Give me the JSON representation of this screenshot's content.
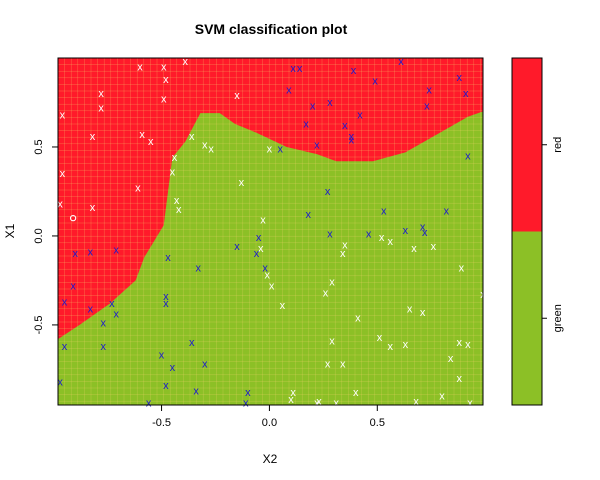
{
  "chart_data": {
    "type": "scatter",
    "title": "SVM classification plot",
    "xlabel": "X2",
    "ylabel": "X1",
    "xlim": [
      -0.98,
      0.99
    ],
    "ylim": [
      -0.95,
      1.0
    ],
    "x_ticks": [
      -0.5,
      0.0,
      0.5
    ],
    "x_tick_labels": [
      "-0.5",
      "0.0",
      "0.5"
    ],
    "y_ticks": [
      -0.5,
      0.0,
      0.5
    ],
    "y_tick_labels": [
      "-0.5",
      "0.0",
      "0.5"
    ],
    "grid": true,
    "regions": {
      "colors": {
        "red": "#ff1a2a",
        "green": "#8cc026"
      },
      "grid_color": "#f5d36b",
      "boundary": [
        [
          -0.98,
          -0.58
        ],
        [
          -0.88,
          -0.5
        ],
        [
          -0.74,
          -0.38
        ],
        [
          -0.62,
          -0.25
        ],
        [
          -0.58,
          -0.12
        ],
        [
          -0.49,
          0.06
        ],
        [
          -0.45,
          0.44
        ],
        [
          -0.39,
          0.53
        ],
        [
          -0.32,
          0.69
        ],
        [
          -0.23,
          0.69
        ],
        [
          -0.16,
          0.63
        ],
        [
          -0.06,
          0.58
        ],
        [
          0.08,
          0.5
        ],
        [
          0.22,
          0.46
        ],
        [
          0.31,
          0.42
        ],
        [
          0.48,
          0.42
        ],
        [
          0.63,
          0.47
        ],
        [
          0.79,
          0.58
        ],
        [
          0.92,
          0.67
        ],
        [
          0.99,
          0.7
        ]
      ],
      "legend": {
        "labels": [
          "red",
          "green"
        ],
        "colors": [
          "#ff1a2a",
          "#8cc026"
        ]
      }
    },
    "legend_placement": "right",
    "point_marker": "x",
    "support_vector_color": "#1a1acf",
    "non_support_vector_color": "#ffffff",
    "support_vectors": [
      [
        0.11,
        0.94
      ],
      [
        0.14,
        0.94
      ],
      [
        0.39,
        0.93
      ],
      [
        0.49,
        0.87
      ],
      [
        0.61,
        0.98
      ],
      [
        0.74,
        0.82
      ],
      [
        0.88,
        0.89
      ],
      [
        0.91,
        0.8
      ],
      [
        0.09,
        0.82
      ],
      [
        0.2,
        0.73
      ],
      [
        0.28,
        0.75
      ],
      [
        0.42,
        0.68
      ],
      [
        0.73,
        0.73
      ],
      [
        0.17,
        0.63
      ],
      [
        0.35,
        0.62
      ],
      [
        0.38,
        0.54
      ],
      [
        0.38,
        0.56
      ],
      [
        0.22,
        0.51
      ],
      [
        0.05,
        0.49
      ],
      [
        0.92,
        0.45
      ],
      [
        0.27,
        0.25
      ],
      [
        0.18,
        0.12
      ],
      [
        0.53,
        0.14
      ],
      [
        0.82,
        0.14
      ],
      [
        0.46,
        0.01
      ],
      [
        0.63,
        0.03
      ],
      [
        0.71,
        0.05
      ],
      [
        0.72,
        0.02
      ],
      [
        0.28,
        0.01
      ],
      [
        -0.15,
        -0.06
      ],
      [
        -0.05,
        -0.01
      ],
      [
        -0.06,
        -0.1
      ],
      [
        -0.02,
        -0.18
      ],
      [
        -0.33,
        -0.18
      ],
      [
        -0.47,
        -0.12
      ],
      [
        -0.9,
        -0.1
      ],
      [
        -0.83,
        -0.09
      ],
      [
        -0.71,
        -0.08
      ],
      [
        -0.91,
        -0.28
      ],
      [
        -0.95,
        -0.37
      ],
      [
        -0.83,
        -0.41
      ],
      [
        -0.73,
        -0.38
      ],
      [
        -0.77,
        -0.49
      ],
      [
        -0.71,
        -0.44
      ],
      [
        -0.95,
        -0.62
      ],
      [
        -0.77,
        -0.62
      ],
      [
        -0.48,
        -0.34
      ],
      [
        -0.48,
        -0.38
      ],
      [
        -0.36,
        -0.6
      ],
      [
        -0.3,
        -0.72
      ],
      [
        -0.5,
        -0.67
      ],
      [
        -0.45,
        -0.74
      ],
      [
        -0.97,
        -0.82
      ],
      [
        -0.48,
        -0.84
      ],
      [
        -0.34,
        -0.87
      ],
      [
        -0.1,
        -0.88
      ],
      [
        -0.56,
        -0.94
      ],
      [
        -0.11,
        -0.94
      ]
    ],
    "other_points": [
      [
        -0.6,
        0.95
      ],
      [
        -0.49,
        0.95
      ],
      [
        -0.39,
        0.98
      ],
      [
        -0.48,
        0.88
      ],
      [
        -0.78,
        0.8
      ],
      [
        -0.78,
        0.72
      ],
      [
        -0.96,
        0.68
      ],
      [
        -0.49,
        0.77
      ],
      [
        -0.15,
        0.79
      ],
      [
        -0.59,
        0.57
      ],
      [
        -0.55,
        0.53
      ],
      [
        -0.82,
        0.56
      ],
      [
        -0.36,
        0.56
      ],
      [
        -0.3,
        0.51
      ],
      [
        -0.27,
        0.49
      ],
      [
        -0.96,
        0.35
      ],
      [
        -0.61,
        0.27
      ],
      [
        -0.44,
        0.44
      ],
      [
        -0.45,
        0.36
      ],
      [
        -0.43,
        0.2
      ],
      [
        -0.42,
        0.15
      ],
      [
        -0.97,
        0.18
      ],
      [
        -0.82,
        0.16
      ],
      [
        -0.13,
        0.3
      ],
      [
        0.0,
        0.49
      ],
      [
        -0.03,
        0.09
      ],
      [
        -0.04,
        -0.07
      ],
      [
        -0.01,
        -0.22
      ],
      [
        0.01,
        -0.28
      ],
      [
        0.06,
        -0.39
      ],
      [
        0.29,
        -0.26
      ],
      [
        0.26,
        -0.32
      ],
      [
        0.34,
        -0.1
      ],
      [
        0.35,
        -0.05
      ],
      [
        0.52,
        -0.01
      ],
      [
        0.41,
        -0.46
      ],
      [
        0.51,
        -0.57
      ],
      [
        0.63,
        -0.61
      ],
      [
        0.56,
        -0.62
      ],
      [
        0.29,
        -0.59
      ],
      [
        0.27,
        -0.72
      ],
      [
        0.34,
        -0.72
      ],
      [
        0.65,
        -0.41
      ],
      [
        0.71,
        -0.43
      ],
      [
        0.88,
        -0.6
      ],
      [
        0.84,
        -0.69
      ],
      [
        0.88,
        -0.8
      ],
      [
        0.92,
        -0.61
      ],
      [
        0.99,
        -0.33
      ],
      [
        0.89,
        -0.18
      ],
      [
        0.76,
        -0.06
      ],
      [
        0.67,
        -0.07
      ],
      [
        0.56,
        -0.03
      ],
      [
        0.11,
        -0.88
      ],
      [
        0.23,
        -0.93
      ],
      [
        0.4,
        -0.88
      ],
      [
        0.68,
        -0.93
      ],
      [
        0.8,
        -0.9
      ],
      [
        0.1,
        -0.92
      ],
      [
        0.31,
        -0.94
      ],
      [
        0.93,
        -0.94
      ],
      [
        0.22,
        -0.94
      ]
    ],
    "open_points": [
      [
        -0.91,
        0.1
      ]
    ]
  }
}
